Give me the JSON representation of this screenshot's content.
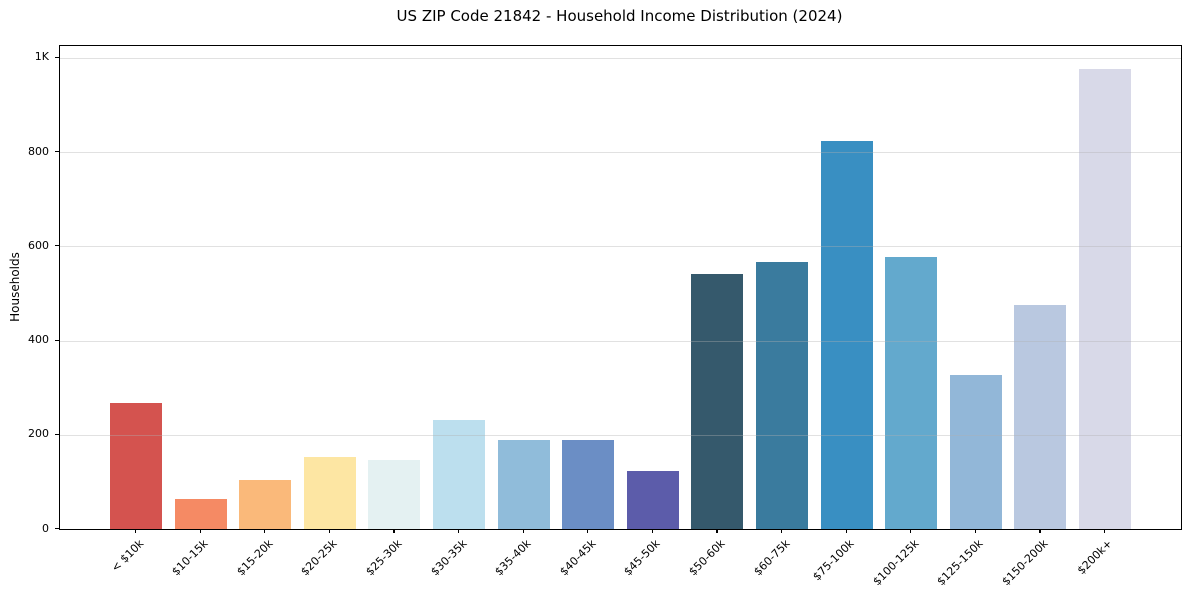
{
  "chart_data": {
    "type": "bar",
    "title": "US ZIP Code 21842 - Household Income Distribution (2024)",
    "xlabel": "",
    "ylabel": "Households",
    "categories": [
      "< $10k",
      "$10-15k",
      "$15-20k",
      "$20-25k",
      "$25-30k",
      "$30-35k",
      "$35-40k",
      "$40-45k",
      "$45-50k",
      "$50-60k",
      "$60-75k",
      "$75-100k",
      "$100-125k",
      "$125-150k",
      "$150-200k",
      "$200k+"
    ],
    "values": [
      268,
      64,
      104,
      152,
      147,
      232,
      188,
      188,
      124,
      541,
      567,
      823,
      578,
      327,
      475,
      976
    ],
    "bar_colors": [
      "#d4534f",
      "#f58a64",
      "#fab97a",
      "#fde6a3",
      "#e4f1f2",
      "#bcdfee",
      "#90bcda",
      "#6b8ec5",
      "#5c5caa",
      "#35596c",
      "#3a7b9e",
      "#398fc2",
      "#63a9cd",
      "#92b7d8",
      "#b9c8e0",
      "#d8d9e8"
    ],
    "yticks": [
      {
        "value": 0,
        "label": "0"
      },
      {
        "value": 200,
        "label": "200"
      },
      {
        "value": 400,
        "label": "400"
      },
      {
        "value": 600,
        "label": "600"
      },
      {
        "value": 800,
        "label": "800"
      },
      {
        "value": 1000,
        "label": "1K"
      }
    ],
    "ylim": [
      0,
      1025
    ],
    "grid": "horizontal",
    "gridline_color_rgba": "rgba(176,176,176,0.38)",
    "axis_color": "#000000",
    "background_color": "#ffffff",
    "legend": "none"
  }
}
